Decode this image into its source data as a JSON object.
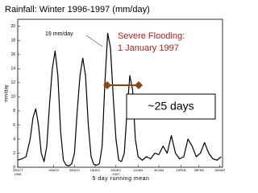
{
  "chart_data": {
    "type": "line",
    "title": "Rainfall: Winter 1996-1997 (mm/day)",
    "y_label": "mm/day",
    "x_label": "5 day running mean",
    "x": [
      0,
      3,
      6,
      9,
      11,
      13,
      15,
      17,
      19,
      21,
      23,
      25,
      27,
      29,
      31,
      33,
      35,
      37,
      39,
      41,
      43,
      45,
      47,
      49,
      51,
      53,
      55,
      57,
      59,
      61,
      63,
      65,
      67,
      69,
      71,
      73,
      75,
      77,
      79,
      81,
      83,
      85,
      87,
      90,
      93,
      96,
      99,
      102,
      105,
      108,
      111,
      114,
      117,
      120,
      123,
      126,
      129,
      132,
      135,
      138,
      141,
      144,
      147
    ],
    "series": [
      {
        "color": "#000000",
        "values": [
          1,
          1.2,
          1.5,
          4,
          7,
          8.3,
          6,
          2,
          0.8,
          3,
          9,
          14,
          16.5,
          13,
          5,
          1,
          0.3,
          0.2,
          0.5,
          2,
          8,
          13,
          15.5,
          13,
          6,
          1.5,
          0.4,
          0.3,
          0.5,
          3,
          12,
          19,
          17,
          10,
          4,
          1,
          0.8,
          2,
          8,
          13,
          11,
          4,
          1.5,
          1,
          1.5,
          1.2,
          2,
          1.8,
          3,
          2,
          4.5,
          2,
          1.2,
          1.5,
          4,
          3,
          1.5,
          2,
          3.5,
          2,
          1.2,
          1,
          1.5
        ]
      }
    ],
    "xlim": [
      0,
      148
    ],
    "xticks": [
      {
        "value": 0,
        "label": "20OCT",
        "year": "1996"
      },
      {
        "value": 26,
        "label": "15NOV"
      },
      {
        "value": 41,
        "label": "30NOV"
      },
      {
        "value": 56,
        "label": "15DEC"
      },
      {
        "value": 71,
        "label": "30DEC",
        "year": "1997"
      },
      {
        "value": 87,
        "label": "15JAN"
      },
      {
        "value": 102,
        "label": "30JAN"
      },
      {
        "value": 118,
        "label": "15FEB"
      },
      {
        "value": 131,
        "label": "28FEB"
      },
      {
        "value": 146,
        "label": "15MAR"
      }
    ],
    "ylim": [
      0,
      21
    ],
    "yticks": [
      0,
      2,
      4,
      6,
      8,
      10,
      12,
      14,
      16,
      18,
      20
    ],
    "annotations": {
      "peak": "19 mm/day",
      "flood_line1": "Severe Flooding:",
      "flood_line2": "1 January 1997",
      "duration": "~25 days"
    }
  }
}
